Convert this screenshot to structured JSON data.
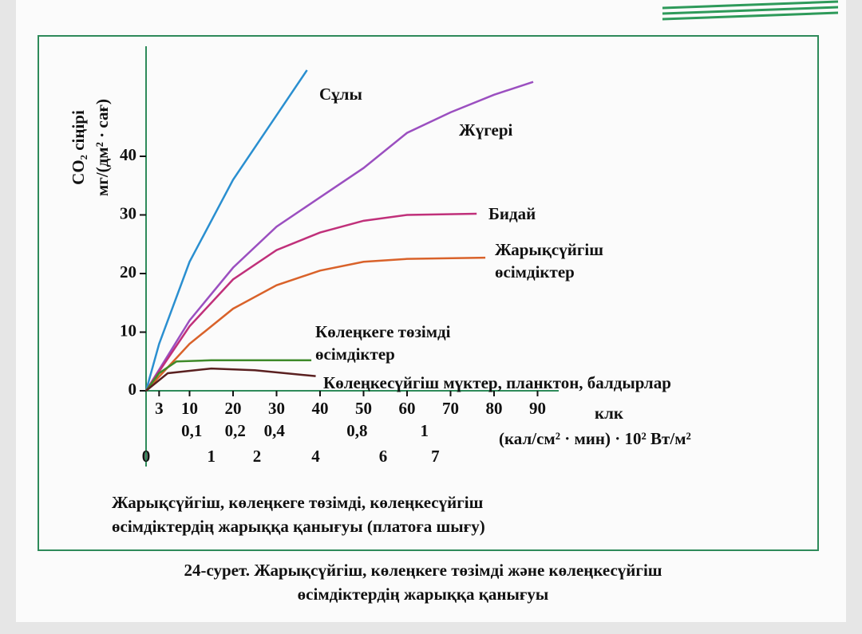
{
  "chart_data": {
    "type": "line",
    "title": [
      "24-сурет. Жарықсүйгіш, көлеңкеге төзімді және көлеңкесүйгіш",
      "өсімдіктердің жарыққа қанығуы"
    ],
    "caption": [
      "Жарықсүйгіш, көлеңкеге төзімді, көлеңкесүйгіш",
      "өсімдіктердің жарыққа қанығуы (платоға шығу)"
    ],
    "y_label": [
      "CO₂ сіңірі",
      "мг/(дм² · сағ)"
    ],
    "x_label": "клк",
    "x2_label": "(кал/см² · мин) · 10² Вт/м²",
    "xlim": [
      0,
      100
    ],
    "ylim": [
      0,
      60
    ],
    "yticks": [
      0,
      10,
      20,
      30,
      40
    ],
    "xticks": [
      3,
      10,
      20,
      30,
      40,
      50,
      60,
      70,
      80,
      90
    ],
    "secondary_scales": [
      {
        "ticks": [
          {
            "value": 0.1,
            "label": "0,1",
            "klx": 10.5
          },
          {
            "value": 0.2,
            "label": "0,2",
            "klx": 20.5
          },
          {
            "value": 0.4,
            "label": "0,4",
            "klx": 29.5
          },
          {
            "value": 0.8,
            "label": "0,8",
            "klx": 48.5
          },
          {
            "value": 1,
            "label": "1",
            "klx": 64
          }
        ]
      },
      {
        "ticks": [
          {
            "value": 0,
            "klx": 0
          },
          {
            "value": 1,
            "klx": 15
          },
          {
            "value": 2,
            "klx": 25.5
          },
          {
            "value": 4,
            "klx": 39
          },
          {
            "value": 6,
            "klx": 54.5
          },
          {
            "value": 7,
            "klx": 66.5
          }
        ]
      }
    ],
    "series": [
      {
        "name": [
          "Сұлы"
        ],
        "color": "#2a8fd0",
        "x": [
          0,
          3,
          10,
          20,
          30,
          37
        ],
        "values": [
          0,
          8,
          22,
          36,
          47,
          54.7
        ]
      },
      {
        "name": [
          "Жүгері"
        ],
        "color": "#9b4fc0",
        "x": [
          0,
          10,
          20,
          30,
          40,
          50,
          60,
          70,
          80,
          89
        ],
        "values": [
          0,
          12,
          21,
          28,
          33,
          38,
          44,
          47.5,
          50.5,
          52.7
        ]
      },
      {
        "name": [
          "Бидай"
        ],
        "color": "#c0307a",
        "x": [
          0,
          10,
          20,
          30,
          40,
          50,
          60,
          76
        ],
        "values": [
          0,
          11,
          19,
          24,
          27,
          29,
          30,
          30.2
        ]
      },
      {
        "name": [
          "Жарықсүйгіш",
          "өсімдіктер"
        ],
        "color": "#d9622a",
        "x": [
          0,
          10,
          20,
          30,
          40,
          50,
          60,
          78
        ],
        "values": [
          0,
          8,
          14,
          18,
          20.5,
          22,
          22.5,
          22.7
        ]
      },
      {
        "name": [
          "Көлеңкеге төзімді",
          "өсімдіктер"
        ],
        "color": "#3f8a2a",
        "x": [
          0,
          3,
          7,
          15,
          38
        ],
        "values": [
          0,
          3,
          5,
          5.2,
          5.2
        ]
      },
      {
        "name": [
          "Көлеңкесүйгіш мүктер, планктон, балдырлар"
        ],
        "color": "#5a2020",
        "x": [
          0,
          5,
          15,
          25,
          39
        ],
        "values": [
          0,
          3,
          3.8,
          3.5,
          2.5
        ]
      }
    ]
  }
}
